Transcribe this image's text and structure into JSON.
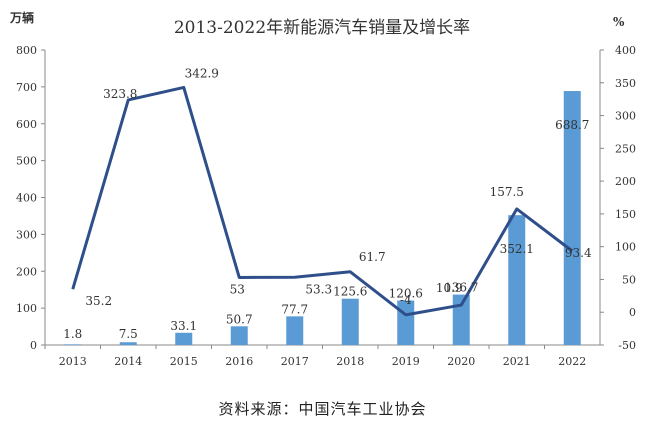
{
  "chart_data": {
    "type": "bar",
    "title": "2013-2022年新能源汽车销量及增长率",
    "categories": [
      "2013",
      "2014",
      "2015",
      "2016",
      "2017",
      "2018",
      "2019",
      "2020",
      "2021",
      "2022"
    ],
    "series": [
      {
        "type": "bar",
        "axis": "left",
        "color": "#5b9bd5",
        "values": [
          1.8,
          7.5,
          33.1,
          50.7,
          77.7,
          125.6,
          120.6,
          136.7,
          352.1,
          688.7
        ],
        "labels": [
          "1.8",
          "7.5",
          "33.1",
          "50.7",
          "77.7",
          "125.6",
          "120.6",
          "136.7",
          "352.1",
          "688.7"
        ]
      },
      {
        "type": "line",
        "axis": "right",
        "color": "#2f4f8a",
        "values": [
          35.2,
          323.8,
          342.9,
          53,
          53.3,
          61.7,
          -4,
          10.9,
          157.5,
          93.4
        ],
        "labels": [
          "35.2",
          "323.8",
          "342.9",
          "53",
          "53.3",
          "61.7",
          "-4",
          "10.9",
          "157.5",
          "93.4"
        ]
      }
    ],
    "y_left": {
      "label": "万辆",
      "ylim": [
        0,
        800
      ],
      "ticks": [
        0,
        100,
        200,
        300,
        400,
        500,
        600,
        700,
        800
      ]
    },
    "y_right": {
      "label": "%",
      "ylim": [
        -50,
        400
      ],
      "ticks": [
        -50,
        0,
        50,
        100,
        150,
        200,
        250,
        300,
        350,
        400
      ]
    },
    "grid": false,
    "legend": "none"
  },
  "source": "资料来源：中国汽车工业协会"
}
